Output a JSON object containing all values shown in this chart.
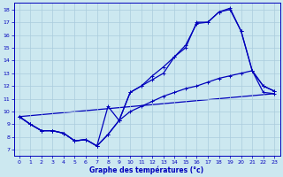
{
  "xlabel": "Graphe des températures (°c)",
  "background_color": "#cce8f0",
  "grid_color": "#aaccdd",
  "line_color": "#0000bb",
  "xlim": [
    -0.5,
    23.5
  ],
  "ylim": [
    6.5,
    18.5
  ],
  "xticks": [
    0,
    1,
    2,
    3,
    4,
    5,
    6,
    7,
    8,
    9,
    10,
    11,
    12,
    13,
    14,
    15,
    16,
    17,
    18,
    19,
    20,
    21,
    22,
    23
  ],
  "yticks": [
    7,
    8,
    9,
    10,
    11,
    12,
    13,
    14,
    15,
    16,
    17,
    18
  ],
  "line1_x": [
    0,
    1,
    2,
    3,
    4,
    5,
    6,
    7,
    8,
    9,
    10,
    11,
    12,
    13,
    14,
    15,
    16,
    17,
    18,
    19,
    20,
    21,
    22,
    23
  ],
  "line1_y": [
    9.6,
    9.0,
    8.5,
    8.5,
    8.3,
    7.7,
    7.8,
    7.3,
    10.4,
    9.3,
    11.5,
    12.0,
    12.8,
    13.5,
    14.3,
    15.0,
    17.0,
    17.0,
    17.8,
    18.0,
    16.3,
    13.2,
    12.0,
    11.6
  ],
  "line2_x": [
    0,
    1,
    2,
    3,
    4,
    5,
    6,
    7,
    8,
    9,
    10,
    11,
    12,
    13,
    14,
    15,
    16,
    17,
    18,
    19,
    20,
    21,
    22,
    23
  ],
  "line2_y": [
    9.6,
    9.0,
    8.5,
    8.5,
    8.3,
    7.7,
    7.8,
    7.3,
    8.2,
    9.3,
    11.5,
    12.0,
    12.5,
    13.0,
    14.3,
    15.2,
    16.9,
    17.0,
    17.8,
    18.1,
    16.3,
    13.2,
    12.0,
    11.6
  ],
  "line3_x": [
    0,
    1,
    2,
    3,
    4,
    5,
    6,
    7,
    8,
    9,
    10,
    11,
    12,
    13,
    14,
    15,
    16,
    17,
    18,
    19,
    20,
    21,
    22,
    23
  ],
  "line3_y": [
    9.6,
    9.0,
    8.5,
    8.5,
    8.3,
    7.7,
    7.8,
    7.3,
    8.2,
    9.3,
    10.0,
    10.4,
    10.8,
    11.2,
    11.5,
    11.8,
    12.0,
    12.3,
    12.6,
    12.8,
    13.0,
    13.2,
    11.5,
    11.4
  ],
  "line4_x": [
    0,
    23
  ],
  "line4_y": [
    9.6,
    11.4
  ]
}
